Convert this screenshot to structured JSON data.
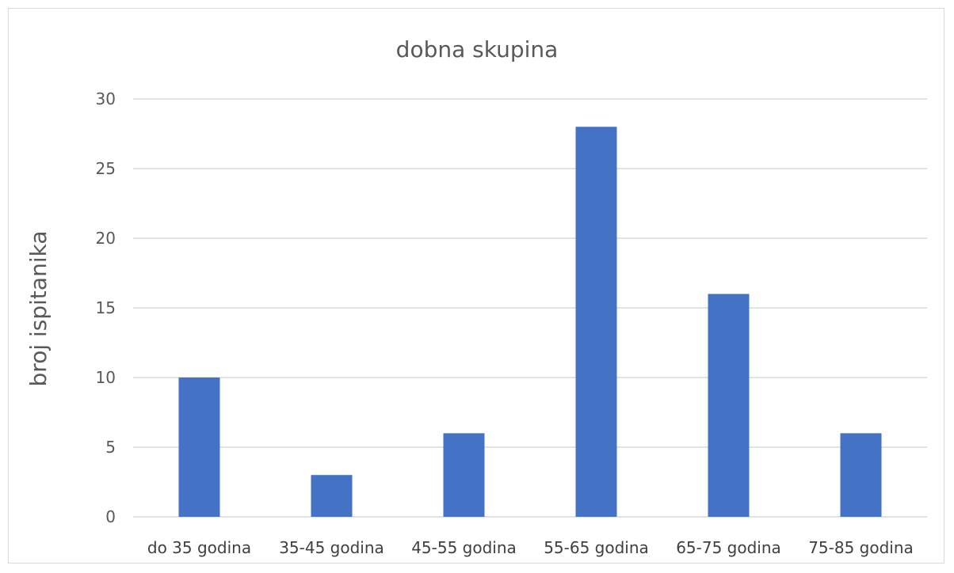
{
  "chart_data": {
    "type": "bar",
    "title": "dobna skupina",
    "xlabel": "",
    "ylabel": "broj ispitanika",
    "categories": [
      "do 35 godina",
      "35-45 godina",
      "45-55 godina",
      "55-65 godina",
      "65-75 godina",
      "75-85 godina"
    ],
    "values": [
      10,
      3,
      6,
      28,
      16,
      6
    ],
    "ylim": [
      0,
      30
    ],
    "yticks": [
      0,
      5,
      10,
      15,
      20,
      25,
      30
    ],
    "grid": true,
    "legend": "none",
    "bar_color": "#4472c4"
  }
}
